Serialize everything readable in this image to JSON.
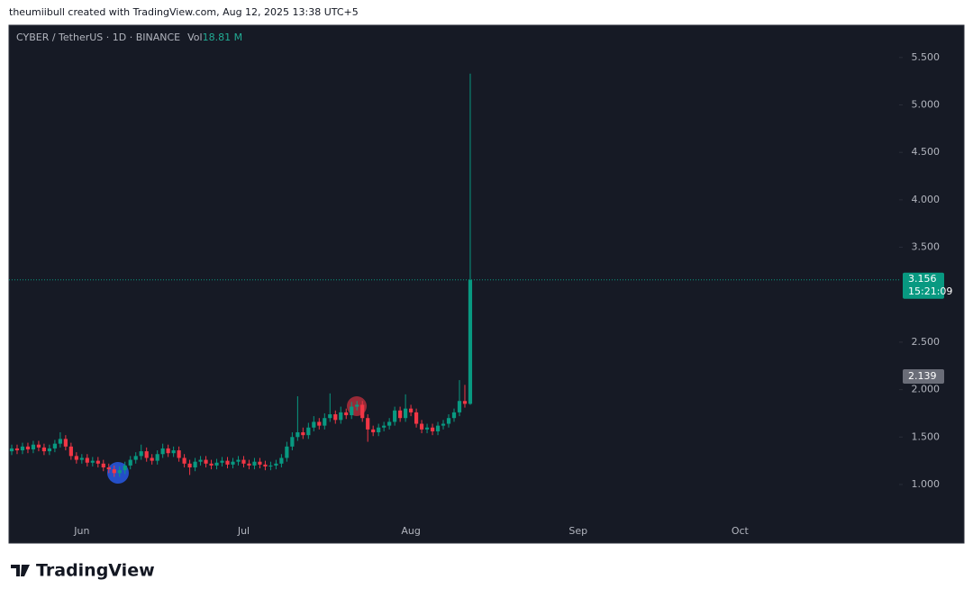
{
  "header": {
    "text": "theumiibull created with TradingView.com, Aug 12, 2025 13:38 UTC+5"
  },
  "brand": "TradingView",
  "chart_data": {
    "type": "candlestick",
    "symbol": "CYBER / TetherUS · 1D · BINANCE",
    "volume_label": "Vol",
    "volume": "18.81 M",
    "up_color": "#089981",
    "down_color": "#f23645",
    "grid": false,
    "ylim": [
      0.62,
      5.84
    ],
    "yticks": [
      {
        "value": 1,
        "label": "1.000"
      },
      {
        "value": 1.5,
        "label": "1.500"
      },
      {
        "value": 2,
        "label": "2.000"
      },
      {
        "value": 2.5,
        "label": "2.500"
      },
      {
        "value": 3.5,
        "label": "3.500"
      },
      {
        "value": 4,
        "label": "4.000"
      },
      {
        "value": 4.5,
        "label": "4.500"
      },
      {
        "value": 5,
        "label": "5.000"
      },
      {
        "value": 5.5,
        "label": "5.500"
      }
    ],
    "last_price": {
      "value": 3.156,
      "label": "3.156"
    },
    "countdown": "15:21:09",
    "price_labels": [
      {
        "value": 2.139,
        "label": "2.139"
      }
    ],
    "categories": [
      null,
      null,
      null,
      null,
      null,
      null,
      null,
      null,
      null,
      null,
      null,
      null,
      null,
      "Jun",
      null,
      null,
      null,
      null,
      null,
      null,
      null,
      null,
      null,
      null,
      null,
      null,
      null,
      null,
      null,
      null,
      null,
      null,
      null,
      null,
      null,
      null,
      null,
      null,
      null,
      null,
      null,
      null,
      null,
      "Jul",
      null,
      null,
      null,
      null,
      null,
      null,
      null,
      null,
      null,
      null,
      null,
      null,
      null,
      null,
      null,
      null,
      null,
      null,
      null,
      null,
      null,
      null,
      null,
      null,
      null,
      null,
      null,
      null,
      null,
      null,
      "Aug",
      null,
      null,
      null,
      null,
      null,
      null,
      null,
      null,
      null,
      null,
      null,
      null,
      null,
      null,
      null,
      null,
      null,
      null,
      null,
      null,
      null,
      null,
      null,
      null,
      null,
      null,
      null,
      null,
      null,
      null,
      "Sep",
      null,
      null,
      null,
      null,
      null,
      null,
      null,
      null,
      null,
      null,
      null,
      null,
      null,
      null,
      null,
      null,
      null,
      null,
      null,
      null,
      null,
      null,
      null,
      null,
      null,
      null,
      null,
      null,
      null,
      "Oct",
      null,
      null,
      null,
      null,
      null,
      null,
      null,
      null,
      null,
      null,
      null,
      null,
      null,
      null,
      null,
      null,
      null,
      null,
      null,
      null,
      null,
      null,
      null,
      null,
      null,
      null,
      null,
      null,
      null
    ],
    "open": [
      1.35,
      1.38,
      1.36,
      1.4,
      1.37,
      1.42,
      1.39,
      1.35,
      1.38,
      1.43,
      1.48,
      1.4,
      1.3,
      1.26,
      1.28,
      1.23,
      1.25,
      1.22,
      1.18,
      1.16,
      1.12,
      1.15,
      1.2,
      1.26,
      1.3,
      1.35,
      1.28,
      1.25,
      1.32,
      1.38,
      1.33,
      1.36,
      1.28,
      1.22,
      1.18,
      1.24,
      1.26,
      1.22,
      1.2,
      1.23,
      1.25,
      1.21,
      1.24,
      1.26,
      1.22,
      1.2,
      1.24,
      1.21,
      1.19,
      1.2,
      1.22,
      1.28,
      1.4,
      1.5,
      1.55,
      1.52,
      1.6,
      1.66,
      1.62,
      1.7,
      1.74,
      1.68,
      1.76,
      1.73,
      1.82,
      1.84,
      1.7,
      1.58,
      1.55,
      1.6,
      1.62,
      1.66,
      1.78,
      1.7,
      1.8,
      1.76,
      1.64,
      1.58,
      1.6,
      1.56,
      1.62,
      1.64,
      1.7,
      1.76,
      1.88,
      1.85,
      null,
      null,
      null,
      null,
      null,
      null,
      null,
      null,
      null,
      null,
      null,
      null,
      null,
      null,
      null,
      null,
      null,
      null,
      null,
      null,
      null,
      null,
      null,
      null,
      null,
      null,
      null,
      null,
      null,
      null,
      null,
      null,
      null,
      null,
      null,
      null,
      null,
      null,
      null,
      null,
      null,
      null,
      null,
      null,
      null,
      null,
      null,
      null,
      null,
      null,
      null,
      null,
      null,
      null,
      null,
      null,
      null,
      null,
      null,
      null,
      null,
      null,
      null,
      null,
      null,
      null,
      null,
      null,
      null,
      null,
      null,
      null,
      null,
      null,
      null,
      null,
      null,
      null,
      null
    ],
    "high": [
      1.42,
      1.42,
      1.44,
      1.44,
      1.46,
      1.46,
      1.43,
      1.42,
      1.47,
      1.55,
      1.52,
      1.44,
      1.34,
      1.32,
      1.32,
      1.29,
      1.29,
      1.26,
      1.22,
      1.2,
      1.19,
      1.24,
      1.3,
      1.34,
      1.42,
      1.39,
      1.32,
      1.36,
      1.43,
      1.42,
      1.4,
      1.4,
      1.32,
      1.26,
      1.28,
      1.3,
      1.3,
      1.26,
      1.27,
      1.29,
      1.29,
      1.28,
      1.3,
      1.3,
      1.26,
      1.28,
      1.28,
      1.25,
      1.24,
      1.26,
      1.32,
      1.45,
      1.55,
      1.93,
      1.6,
      1.65,
      1.72,
      1.7,
      1.75,
      1.96,
      1.78,
      1.82,
      1.8,
      1.87,
      1.88,
      1.88,
      1.74,
      1.62,
      1.64,
      1.66,
      1.7,
      1.82,
      1.82,
      1.95,
      1.84,
      1.8,
      1.68,
      1.64,
      1.64,
      1.66,
      1.68,
      1.74,
      1.8,
      2.1,
      2.05,
      5.33,
      null,
      null,
      null,
      null,
      null,
      null,
      null,
      null,
      null,
      null,
      null,
      null,
      null,
      null,
      null,
      null,
      null,
      null,
      null,
      null,
      null,
      null,
      null,
      null,
      null,
      null,
      null,
      null,
      null,
      null,
      null,
      null,
      null,
      null,
      null,
      null,
      null,
      null,
      null,
      null,
      null,
      null,
      null,
      null,
      null,
      null,
      null,
      null,
      null,
      null,
      null,
      null,
      null,
      null,
      null,
      null,
      null,
      null,
      null,
      null,
      null,
      null,
      null,
      null,
      null,
      null,
      null,
      null,
      null,
      null,
      null,
      null,
      null,
      null,
      null,
      null,
      null,
      null,
      null
    ],
    "low": [
      1.31,
      1.32,
      1.32,
      1.33,
      1.33,
      1.35,
      1.31,
      1.31,
      1.34,
      1.39,
      1.36,
      1.26,
      1.22,
      1.22,
      1.19,
      1.19,
      1.18,
      1.14,
      1.12,
      1.08,
      1.08,
      1.11,
      1.16,
      1.22,
      1.26,
      1.24,
      1.21,
      1.21,
      1.28,
      1.29,
      1.29,
      1.24,
      1.18,
      1.1,
      1.14,
      1.2,
      1.18,
      1.16,
      1.16,
      1.19,
      1.17,
      1.17,
      1.2,
      1.18,
      1.16,
      1.16,
      1.17,
      1.15,
      1.15,
      1.16,
      1.18,
      1.24,
      1.36,
      1.46,
      1.48,
      1.48,
      1.56,
      1.58,
      1.58,
      1.66,
      1.64,
      1.64,
      1.69,
      1.69,
      1.78,
      1.66,
      1.45,
      1.51,
      1.51,
      1.56,
      1.58,
      1.62,
      1.66,
      1.66,
      1.72,
      1.6,
      1.54,
      1.54,
      1.52,
      1.52,
      1.58,
      1.6,
      1.66,
      1.72,
      1.81,
      1.84,
      null,
      null,
      null,
      null,
      null,
      null,
      null,
      null,
      null,
      null,
      null,
      null,
      null,
      null,
      null,
      null,
      null,
      null,
      null,
      null,
      null,
      null,
      null,
      null,
      null,
      null,
      null,
      null,
      null,
      null,
      null,
      null,
      null,
      null,
      null,
      null,
      null,
      null,
      null,
      null,
      null,
      null,
      null,
      null,
      null,
      null,
      null,
      null,
      null,
      null,
      null,
      null,
      null,
      null,
      null,
      null,
      null,
      null,
      null,
      null,
      null,
      null,
      null,
      null,
      null,
      null,
      null,
      null,
      null,
      null,
      null,
      null,
      null,
      null,
      null,
      null,
      null,
      null,
      null
    ],
    "close": [
      1.38,
      1.36,
      1.4,
      1.37,
      1.42,
      1.39,
      1.35,
      1.38,
      1.43,
      1.48,
      1.4,
      1.3,
      1.26,
      1.28,
      1.23,
      1.25,
      1.22,
      1.18,
      1.16,
      1.12,
      1.15,
      1.2,
      1.26,
      1.3,
      1.35,
      1.28,
      1.25,
      1.32,
      1.38,
      1.33,
      1.36,
      1.28,
      1.22,
      1.18,
      1.24,
      1.26,
      1.22,
      1.2,
      1.23,
      1.25,
      1.21,
      1.24,
      1.26,
      1.22,
      1.2,
      1.24,
      1.21,
      1.19,
      1.2,
      1.22,
      1.28,
      1.4,
      1.5,
      1.55,
      1.52,
      1.6,
      1.66,
      1.62,
      1.7,
      1.74,
      1.68,
      1.76,
      1.73,
      1.82,
      1.84,
      1.7,
      1.58,
      1.55,
      1.6,
      1.62,
      1.66,
      1.78,
      1.7,
      1.8,
      1.76,
      1.64,
      1.58,
      1.6,
      1.56,
      1.62,
      1.64,
      1.7,
      1.76,
      1.88,
      1.85,
      3.156,
      null,
      null,
      null,
      null,
      null,
      null,
      null,
      null,
      null,
      null,
      null,
      null,
      null,
      null,
      null,
      null,
      null,
      null,
      null,
      null,
      null,
      null,
      null,
      null,
      null,
      null,
      null,
      null,
      null,
      null,
      null,
      null,
      null,
      null,
      null,
      null,
      null,
      null,
      null,
      null,
      null,
      null,
      null,
      null,
      null,
      null,
      null,
      null,
      null,
      null,
      null,
      null,
      null,
      null,
      null,
      null,
      null,
      null,
      null,
      null,
      null,
      null,
      null,
      null,
      null,
      null,
      null,
      null,
      null,
      null,
      null,
      null,
      null,
      null,
      null,
      null,
      null,
      null,
      null
    ]
  }
}
